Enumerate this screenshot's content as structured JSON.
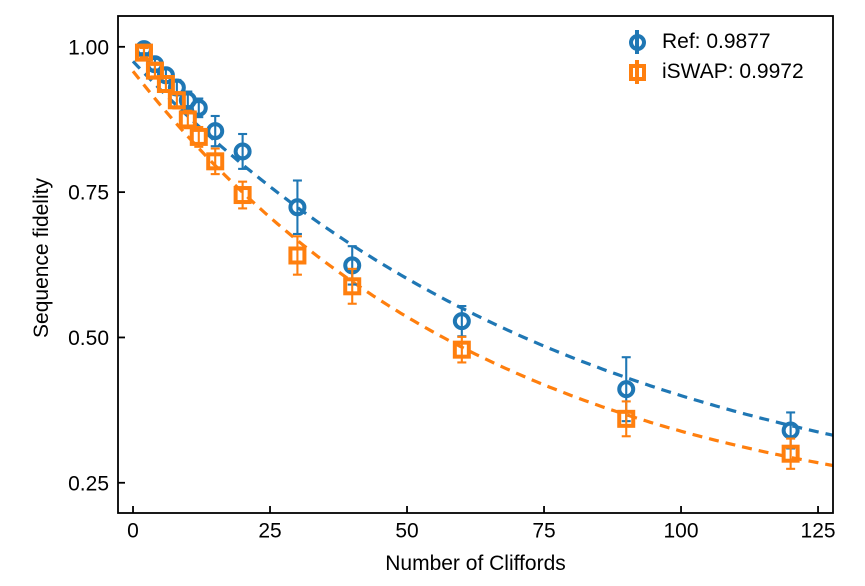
{
  "figure": {
    "background": "#ffffff",
    "axis_color": "#000000",
    "text_color": "#000000"
  },
  "chart_data": {
    "type": "scatter",
    "title": "",
    "xlabel": "Number of Cliffords",
    "ylabel": "Sequence fidelity",
    "xlim": [
      -2.74,
      127.73
    ],
    "ylim": [
      0.198,
      1.053
    ],
    "xticks": [
      0,
      25,
      50,
      75,
      100,
      125
    ],
    "xtick_labels": [
      "0",
      "25",
      "50",
      "75",
      "100",
      "125"
    ],
    "yticks": [
      1.0,
      0.75,
      0.5,
      0.25
    ],
    "ytick_labels": [
      "1.00",
      "0.75",
      "0.50",
      "0.25"
    ],
    "grid": false,
    "legend_position": "upper right",
    "x": [
      2,
      4,
      6,
      8,
      10,
      12,
      15,
      20,
      30,
      40,
      60,
      90,
      120
    ],
    "series": [
      {
        "name": "Ref: 0.9877",
        "marker": "circle",
        "color": "#1f77b4",
        "line_style": "dashed",
        "values": [
          0.996,
          0.97,
          0.951,
          0.93,
          0.908,
          0.895,
          0.855,
          0.82,
          0.724,
          0.624,
          0.528,
          0.411,
          0.34
        ],
        "errors": [
          0.007,
          0.009,
          0.011,
          0.013,
          0.015,
          0.016,
          0.026,
          0.03,
          0.046,
          0.033,
          0.026,
          0.055,
          0.031
        ],
        "fit": {
          "A": 0.81,
          "p": 0.9877,
          "B": 0.165
        }
      },
      {
        "name": "iSWAP: 0.9972",
        "marker": "square",
        "color": "#ff7f0e",
        "line_style": "dashed",
        "values": [
          0.99,
          0.959,
          0.936,
          0.908,
          0.875,
          0.845,
          0.803,
          0.745,
          0.641,
          0.588,
          0.479,
          0.36,
          0.3
        ],
        "errors": [
          0.008,
          0.01,
          0.012,
          0.014,
          0.015,
          0.017,
          0.022,
          0.023,
          0.033,
          0.03,
          0.022,
          0.03,
          0.026
        ],
        "fit": {
          "A": 0.79,
          "p": 0.9848,
          "B": 0.168
        }
      }
    ]
  }
}
